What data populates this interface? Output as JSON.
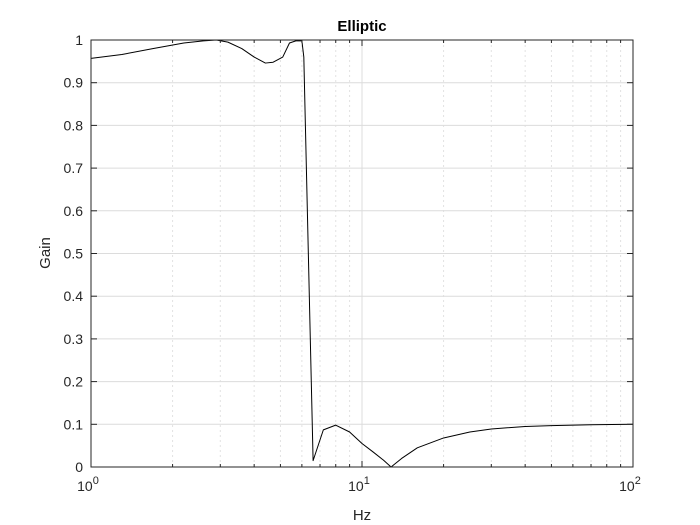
{
  "chart_data": {
    "type": "line",
    "title": "Elliptic",
    "xlabel": "Hz",
    "ylabel": "Gain",
    "xscale": "log",
    "xlim": [
      1,
      100
    ],
    "ylim": [
      0,
      1
    ],
    "grid": true,
    "minor_grid": true,
    "x_ticks": [
      {
        "value": 1,
        "base": "10",
        "exp": "0"
      },
      {
        "value": 10,
        "base": "10",
        "exp": "1"
      },
      {
        "value": 100,
        "base": "10",
        "exp": "2"
      }
    ],
    "y_ticks": [
      {
        "value": 0,
        "label": "0"
      },
      {
        "value": 0.1,
        "label": "0.1"
      },
      {
        "value": 0.2,
        "label": "0.2"
      },
      {
        "value": 0.3,
        "label": "0.3"
      },
      {
        "value": 0.4,
        "label": "0.4"
      },
      {
        "value": 0.5,
        "label": "0.5"
      },
      {
        "value": 0.6,
        "label": "0.6"
      },
      {
        "value": 0.7,
        "label": "0.7"
      },
      {
        "value": 0.8,
        "label": "0.8"
      },
      {
        "value": 0.9,
        "label": "0.9"
      },
      {
        "value": 1,
        "label": "1"
      }
    ],
    "series": [
      {
        "color": "#000000",
        "x": [
          1.0,
          1.3,
          1.7,
          2.2,
          2.6,
          2.9,
          3.2,
          3.6,
          4.0,
          4.4,
          4.7,
          5.1,
          5.4,
          5.7,
          6.0,
          6.1,
          6.6,
          7.2,
          8.0,
          9.0,
          10.0,
          11.0,
          12.0,
          12.8,
          14.0,
          16.0,
          20.0,
          25.0,
          30.0,
          40.0,
          50.0,
          70.0,
          100.0
        ],
        "y": [
          0.957,
          0.966,
          0.98,
          0.993,
          0.998,
          1.0,
          0.995,
          0.98,
          0.96,
          0.946,
          0.948,
          0.96,
          0.993,
          0.998,
          0.998,
          0.96,
          0.015,
          0.087,
          0.098,
          0.082,
          0.055,
          0.035,
          0.016,
          0.0,
          0.02,
          0.045,
          0.068,
          0.082,
          0.089,
          0.095,
          0.097,
          0.099,
          0.1
        ]
      }
    ]
  }
}
